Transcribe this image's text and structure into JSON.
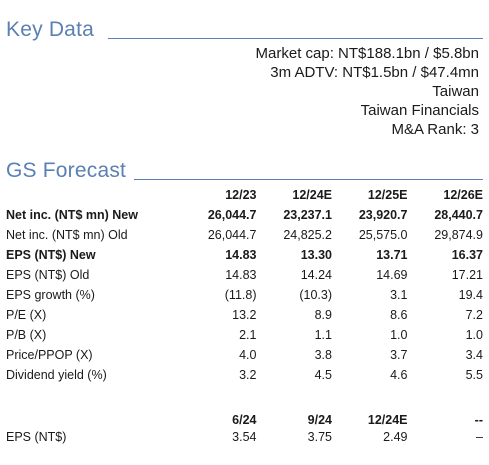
{
  "key_data": {
    "title": "Key Data",
    "lines": [
      "Market cap: NT$188.1bn / $5.8bn",
      "3m ADTV: NT$1.5bn / $47.4mn",
      "Taiwan",
      "Taiwan Financials",
      "M&A Rank: 3"
    ]
  },
  "forecast": {
    "title": "GS Forecast",
    "columns": [
      "12/23",
      "12/24E",
      "12/25E",
      "12/26E"
    ],
    "rows": [
      {
        "label": "Net inc. (NT$ mn) New",
        "values": [
          "26,044.7",
          "23,237.1",
          "23,920.7",
          "28,440.7"
        ],
        "bold": true
      },
      {
        "label": "Net inc. (NT$ mn) Old",
        "values": [
          "26,044.7",
          "24,825.2",
          "25,575.0",
          "29,874.9"
        ],
        "bold": false
      },
      {
        "label": "EPS (NT$) New",
        "values": [
          "14.83",
          "13.30",
          "13.71",
          "16.37"
        ],
        "bold": true
      },
      {
        "label": "EPS (NT$) Old",
        "values": [
          "14.83",
          "14.24",
          "14.69",
          "17.21"
        ],
        "bold": false
      },
      {
        "label": "EPS growth (%)",
        "values": [
          "(11.8)",
          "(10.3)",
          "3.1",
          "19.4"
        ],
        "bold": false
      },
      {
        "label": "P/E (X)",
        "values": [
          "13.2",
          "8.9",
          "8.6",
          "7.2"
        ],
        "bold": false
      },
      {
        "label": "P/B (X)",
        "values": [
          "2.1",
          "1.1",
          "1.0",
          "1.0"
        ],
        "bold": false
      },
      {
        "label": "Price/PPOP (X)",
        "values": [
          "4.0",
          "3.8",
          "3.7",
          "3.4"
        ],
        "bold": false
      },
      {
        "label": "Dividend yield (%)",
        "values": [
          "3.2",
          "4.5",
          "4.6",
          "5.5"
        ],
        "bold": false
      }
    ],
    "quarterly_columns": [
      "6/24",
      "9/24",
      "12/24E",
      "--"
    ],
    "quarterly_rows": [
      {
        "label": "EPS (NT$)",
        "values": [
          "3.54",
          "3.75",
          "2.49",
          "–"
        ]
      }
    ]
  }
}
